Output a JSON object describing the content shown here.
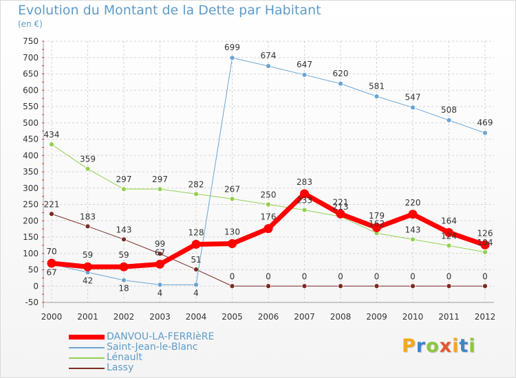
{
  "title": "Evolution du Montant de la Dette par Habitant",
  "subtitle": "(en €)",
  "brand": "Proxiti",
  "brand_colors": [
    "#f4a81d",
    "#3a86c8",
    "#8cc63f",
    "#e4572e",
    "#f4a81d",
    "#3a86c8",
    "#8cc63f"
  ],
  "chart_data": {
    "type": "line",
    "categories": [
      "2000",
      "2001",
      "2002",
      "2003",
      "2004",
      "2005",
      "2006",
      "2007",
      "2008",
      "2009",
      "2010",
      "2011",
      "2012"
    ],
    "ylim": [
      -50,
      750
    ],
    "yticks": [
      -50,
      0,
      50,
      100,
      150,
      200,
      250,
      300,
      350,
      400,
      450,
      500,
      550,
      600,
      650,
      700,
      750
    ],
    "grid": true,
    "legend_position": "bottom-left",
    "series": [
      {
        "name": "Lassy",
        "color": "#7a2a22",
        "width": 1,
        "values": [
          221,
          183,
          143,
          99,
          51,
          0,
          0,
          0,
          0,
          0,
          0,
          0,
          0
        ]
      },
      {
        "name": "Lénault",
        "color": "#92d050",
        "width": 1,
        "values": [
          434,
          359,
          297,
          297,
          282,
          267,
          250,
          233,
          213,
          162,
          143,
          124,
          104
        ]
      },
      {
        "name": "Saint-Jean-le-Blanc",
        "color": "#6aa4d4",
        "width": 1,
        "values": [
          67,
          42,
          18,
          4,
          4,
          699,
          674,
          647,
          620,
          581,
          547,
          508,
          469
        ]
      },
      {
        "name": "DANVOU-LA-FERRIèRE",
        "color": "#ff0000",
        "width": 7,
        "values": [
          70,
          59,
          59,
          67,
          128,
          130,
          176,
          283,
          221,
          179,
          220,
          164,
          126
        ]
      }
    ],
    "data_labels": [
      {
        "series": "Lassy",
        "values": [
          "221",
          "183",
          "143",
          "99",
          "51",
          "0",
          "0",
          "0",
          "0",
          "0",
          "0",
          "0",
          "0"
        ]
      },
      {
        "series": "Lénault",
        "values": [
          "434",
          "359",
          "297",
          "297",
          "282",
          "267",
          "250",
          "233",
          "213",
          "162",
          "143",
          "124",
          "104"
        ]
      },
      {
        "series": "Saint-Jean-le-Blanc",
        "values": [
          "67",
          "42",
          "18",
          "4",
          "4",
          "699",
          "674",
          "647",
          "620",
          "581",
          "547",
          "508",
          "469"
        ]
      },
      {
        "series": "DANVOU-LA-FERRIèRE",
        "values": [
          "70",
          "59",
          "59",
          "67",
          "128",
          "130",
          "176",
          "283",
          "221",
          "179",
          "220",
          "164",
          "126"
        ]
      }
    ]
  }
}
